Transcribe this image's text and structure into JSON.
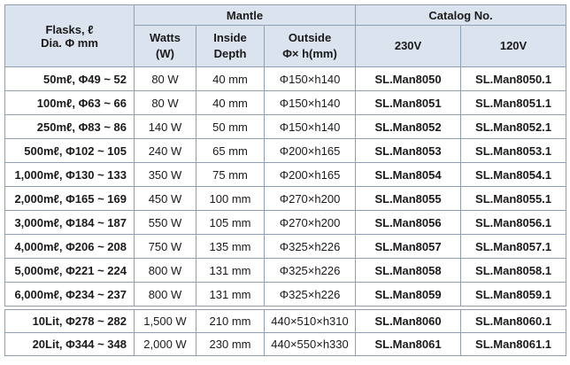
{
  "header": {
    "flasks_label": "Flasks, ℓ",
    "dia_label": "Dia. Φ mm",
    "mantle_label": "Mantle",
    "catalog_label": "Catalog No.",
    "watts_line1": "Watts",
    "watts_line2": "(W)",
    "inside_line1": "Inside",
    "inside_line2": "Depth",
    "outside_line1": "Outside",
    "outside_line2": "Φ× h(mm)",
    "v230": "230V",
    "v120": "120V"
  },
  "rows": [
    {
      "flask": "50mℓ, Φ49 ~ 52",
      "watts": "80 W",
      "depth": "40 mm",
      "outside": "Φ150×h140",
      "cat230": "SL.Man8050",
      "cat120": "SL.Man8050.1"
    },
    {
      "flask": "100mℓ, Φ63 ~ 66",
      "watts": "80 W",
      "depth": "40 mm",
      "outside": "Φ150×h140",
      "cat230": "SL.Man8051",
      "cat120": "SL.Man8051.1"
    },
    {
      "flask": "250mℓ, Φ83 ~ 86",
      "watts": "140 W",
      "depth": "50 mm",
      "outside": "Φ150×h140",
      "cat230": "SL.Man8052",
      "cat120": "SL.Man8052.1"
    },
    {
      "flask": "500mℓ, Φ102 ~ 105",
      "watts": "240 W",
      "depth": "65 mm",
      "outside": "Φ200×h165",
      "cat230": "SL.Man8053",
      "cat120": "SL.Man8053.1"
    },
    {
      "flask": "1,000mℓ, Φ130 ~ 133",
      "watts": "350 W",
      "depth": "75 mm",
      "outside": "Φ200×h165",
      "cat230": "SL.Man8054",
      "cat120": "SL.Man8054.1"
    },
    {
      "flask": "2,000mℓ, Φ165 ~ 169",
      "watts": "450 W",
      "depth": "100 mm",
      "outside": "Φ270×h200",
      "cat230": "SL.Man8055",
      "cat120": "SL.Man8055.1"
    },
    {
      "flask": "3,000mℓ, Φ184 ~ 187",
      "watts": "550 W",
      "depth": "105 mm",
      "outside": "Φ270×h200",
      "cat230": "SL.Man8056",
      "cat120": "SL.Man8056.1"
    },
    {
      "flask": "4,000mℓ, Φ206 ~ 208",
      "watts": "750 W",
      "depth": "135 mm",
      "outside": "Φ325×h226",
      "cat230": "SL.Man8057",
      "cat120": "SL.Man8057.1"
    },
    {
      "flask": "5,000mℓ, Φ221 ~ 224",
      "watts": "800 W",
      "depth": "131 mm",
      "outside": "Φ325×h226",
      "cat230": "SL.Man8058",
      "cat120": "SL.Man8058.1"
    },
    {
      "flask": "6,000mℓ, Φ234 ~ 237",
      "watts": "800 W",
      "depth": "131 mm",
      "outside": "Φ325×h226",
      "cat230": "SL.Man8059",
      "cat120": "SL.Man8059.1"
    }
  ],
  "rows_large": [
    {
      "flask": "10Lit, Φ278 ~ 282",
      "watts": "1,500 W",
      "depth": "210 mm",
      "outside": "440×510×h310",
      "cat230": "SL.Man8060",
      "cat120": "SL.Man8060.1"
    },
    {
      "flask": "20Lit, Φ344 ~ 348",
      "watts": "2,000 W",
      "depth": "230 mm",
      "outside": "440×550×h330",
      "cat230": "SL.Man8061",
      "cat120": "SL.Man8061.1"
    }
  ]
}
